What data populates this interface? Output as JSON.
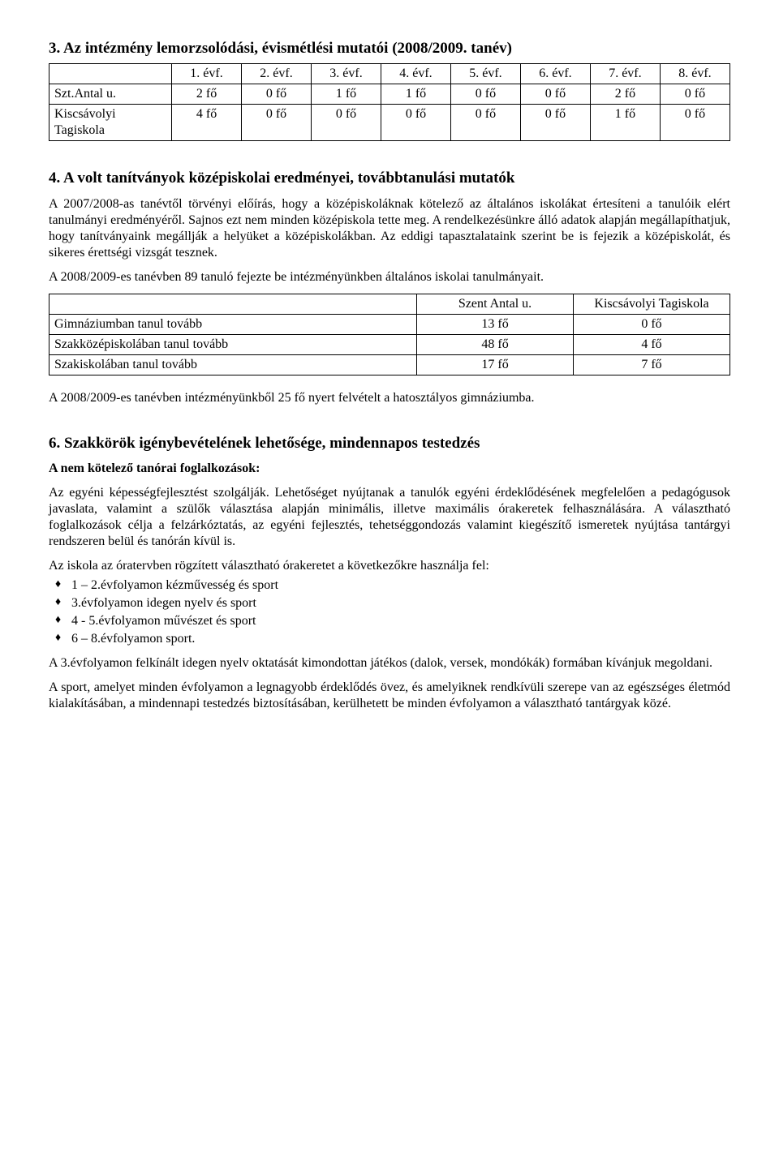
{
  "s3": {
    "title": "3. Az intézmény lemorzsolódási, évismétlési mutatói (2008/2009. tanév)",
    "headers": [
      "1. évf.",
      "2. évf.",
      "3. évf.",
      "4. évf.",
      "5. évf.",
      "6. évf.",
      "7. évf.",
      "8. évf."
    ],
    "rows": [
      {
        "label": "Szt.Antal u.",
        "cells": [
          "2 fő",
          "0 fő",
          "1 fő",
          "1 fő",
          "0 fő",
          "0 fő",
          "2 fő",
          "0 fő"
        ]
      },
      {
        "label": "Kiscsávolyi Tagiskola",
        "cells": [
          "4 fő",
          "0 fő",
          "0 fő",
          "0 fő",
          "0 fő",
          "0 fő",
          "1 fő",
          "0 fő"
        ]
      }
    ]
  },
  "s4": {
    "title": "4. A volt tanítványok középiskolai eredményei, továbbtanulási mutatók",
    "p1": "A 2007/2008-as tanévtől törvényi előírás, hogy a középiskoláknak kötelező az általános iskolákat értesíteni a tanulóik elért tanulmányi eredményéről. Sajnos ezt nem minden középiskola tette meg. A rendelkezésünkre álló adatok alapján megállapíthatjuk, hogy tanítványaink megállják a helyüket a középiskolákban. Az eddigi tapasztalataink szerint be is fejezik a középiskolát, és sikeres érettségi vizsgát tesznek.",
    "p2": "A 2008/2009-es tanévben 89 tanuló fejezte be intézményünkben általános iskolai tanulmányait.",
    "table": {
      "header": [
        "",
        "Szent Antal u.",
        "Kiscsávolyi Tagiskola"
      ],
      "rows": [
        {
          "label": "Gimnáziumban tanul tovább",
          "c1": "13 fő",
          "c2": "0 fő"
        },
        {
          "label": "Szakközépiskolában tanul tovább",
          "c1": "48 fő",
          "c2": "4 fő"
        },
        {
          "label": "Szakiskolában tanul tovább",
          "c1": "17 fő",
          "c2": "7 fő"
        }
      ]
    },
    "p3": "A 2008/2009-es tanévben intézményünkből 25 fő nyert felvételt a hatosztályos gimnáziumba."
  },
  "s6": {
    "title": "6. Szakkörök igénybevételének lehetősége, mindennapos testedzés",
    "sub": "A nem kötelező tanórai foglalkozások:",
    "p1": "Az egyéni képességfejlesztést szolgálják. Lehetőséget nyújtanak a tanulók egyéni érdeklődésének megfelelően a pedagógusok javaslata, valamint a szülők választása alapján minimális, illetve maximális órakeretek felhasználására. A választható foglalkozások célja a felzárkóztatás, az egyéni fejlesztés, tehetséggondozás valamint kiegészítő ismeretek nyújtása tantárgyi rendszeren belül és tanórán kívül is.",
    "p2": "Az iskola az óratervben rögzített választható órakeretet a következőkre használja fel:",
    "bullets": [
      "1 – 2.évfolyamon kézművesség és sport",
      "3.évfolyamon idegen nyelv és sport",
      "4 - 5.évfolyamon művészet és sport",
      "6 – 8.évfolyamon  sport."
    ],
    "p3": "A 3.évfolyamon felkínált idegen nyelv oktatását kimondottan játékos (dalok, versek, mondókák) formában kívánjuk megoldani.",
    "p4": "A sport, amelyet minden évfolyamon a legnagyobb érdeklődés övez, és amelyiknek rendkívüli szerepe van az egészséges életmód kialakításában, a mindennapi testedzés biztosításában, kerülhetett be minden évfolyamon a választható tantárgyak közé."
  }
}
